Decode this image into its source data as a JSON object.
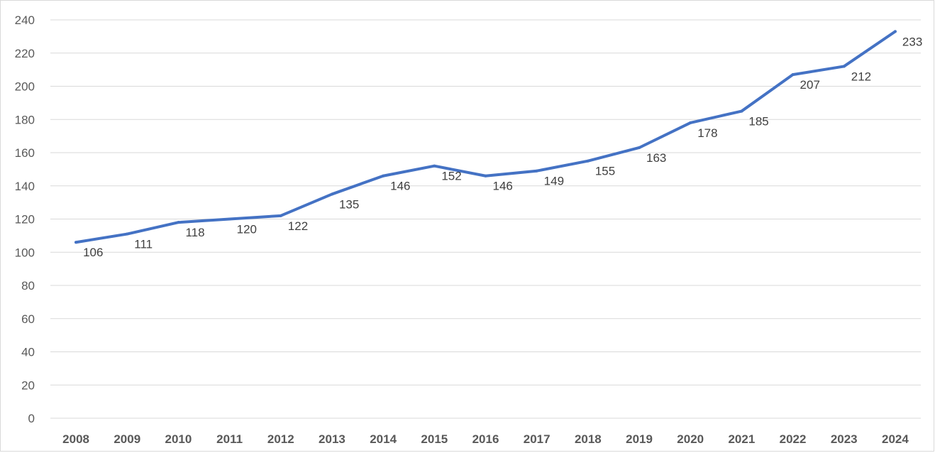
{
  "chart_data": {
    "type": "line",
    "title": "",
    "xlabel": "",
    "ylabel": "",
    "categories": [
      "2008",
      "2009",
      "2010",
      "2011",
      "2012",
      "2013",
      "2014",
      "2015",
      "2016",
      "2017",
      "2018",
      "2019",
      "2020",
      "2021",
      "2022",
      "2023",
      "2024"
    ],
    "series": [
      {
        "values": [
          106,
          111,
          118,
          120,
          122,
          135,
          146,
          152,
          146,
          149,
          155,
          163,
          178,
          185,
          207,
          212,
          233
        ],
        "color": "#4472c4"
      }
    ],
    "ylim": [
      0,
      240
    ],
    "yticks": [
      "0",
      "20",
      "40",
      "60",
      "80",
      "100",
      "120",
      "140",
      "160",
      "180",
      "200",
      "220",
      "240"
    ],
    "grid": true,
    "legend": "none",
    "data_labels": true
  }
}
